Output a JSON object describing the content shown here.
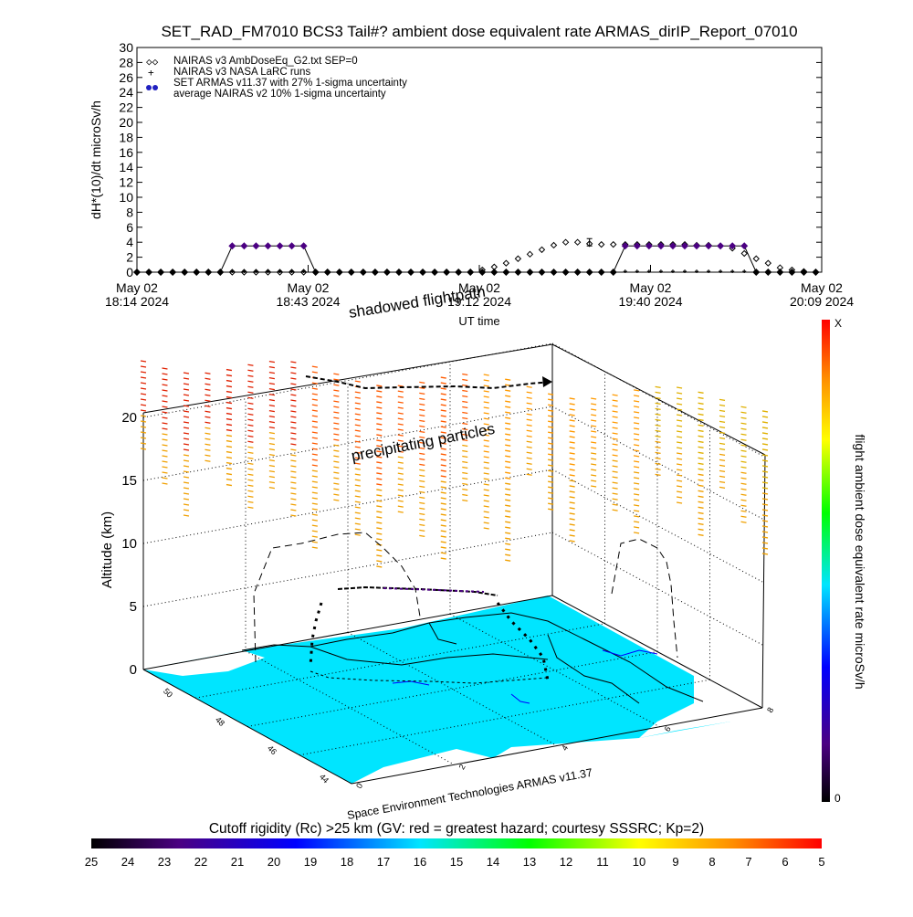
{
  "title": "SET_RAD_FM7010  BCS3 Tail#? ambient dose equivalent rate ARMAS_dirIP_Report_07010",
  "chart_data": [
    {
      "type": "scatter",
      "ylabel": "dH*(10)/dt microSv/h",
      "xlabel": "UT time",
      "ylim": [
        0,
        30
      ],
      "yticks": [
        "0",
        "2",
        "4",
        "6",
        "8",
        "10",
        "12",
        "14",
        "16",
        "18",
        "20",
        "22",
        "24",
        "26",
        "28",
        "30"
      ],
      "xticks": [
        {
          "line1": "May 02",
          "line2": "18:14 2024"
        },
        {
          "line1": "May 02",
          "line2": "18:43 2024"
        },
        {
          "line1": "May 02",
          "line2": "19:12 2024"
        },
        {
          "line1": "May 02",
          "line2": "19:40 2024"
        },
        {
          "line1": "May 02",
          "line2": "20:09 2024"
        }
      ],
      "legend": [
        "NAIRAS v3 AmbDoseEq_G2.txt SEP=0",
        "NAIRAS v3 NASA LaRC runs",
        "SET ARMAS v11.37 with 27% 1-sigma uncertainty",
        "average NAIRAS v2 10% 1-sigma uncertainty"
      ],
      "legend_position": "top-left",
      "series": [
        {
          "name": "NAIRAS v3 AmbDoseEq_G2.txt SEP=0",
          "marker": "diamond",
          "x_min": [
            0,
            2,
            4,
            6,
            8,
            10,
            12,
            14,
            16,
            18,
            20,
            22,
            24,
            26,
            28,
            30,
            32,
            34,
            36,
            38,
            40,
            42,
            44,
            46,
            48,
            50,
            52,
            54,
            56,
            58,
            60,
            62,
            64,
            66,
            68,
            70,
            72,
            74,
            76,
            78,
            80,
            82,
            84,
            86,
            88,
            90,
            92,
            94,
            96,
            98,
            100,
            102,
            104,
            106,
            108,
            110,
            112,
            114
          ],
          "y": [
            0,
            0,
            0,
            0,
            0,
            0,
            0,
            0,
            0,
            0,
            0,
            0,
            0,
            0,
            0,
            0,
            0,
            0,
            0,
            0,
            0,
            0,
            0,
            0,
            0,
            0,
            0,
            0,
            0,
            0.3,
            0.7,
            1.2,
            1.8,
            2.4,
            3.0,
            3.6,
            4.0,
            4.0,
            3.8,
            3.7,
            3.7,
            3.7,
            3.7,
            3.7,
            3.7,
            3.7,
            3.7,
            3.6,
            3.6,
            3.5,
            3.2,
            2.5,
            1.8,
            1.2,
            0.6,
            0.3,
            0.1,
            0
          ]
        },
        {
          "name": "NAIRAS v3 NASA LaRC runs",
          "marker": "plus",
          "x_min": [
            0,
            2,
            4,
            6,
            8,
            10,
            12,
            14,
            16,
            18,
            20,
            22,
            24,
            26,
            28,
            30,
            32,
            34,
            36,
            38,
            40,
            42,
            44,
            46,
            48,
            50,
            52,
            54,
            56,
            58,
            60,
            62,
            64,
            66,
            68,
            70,
            72,
            74,
            76,
            78,
            80,
            82,
            84,
            86,
            88,
            90,
            92,
            94,
            96,
            98,
            100,
            102,
            104,
            106,
            108,
            110,
            112,
            114
          ],
          "y": [
            0,
            0,
            0,
            0,
            0,
            0,
            0,
            0,
            0,
            0,
            0,
            0,
            0,
            0,
            0,
            0,
            0,
            0,
            0,
            0,
            0,
            0,
            0,
            0,
            0,
            0,
            0,
            0,
            0,
            0,
            0,
            0,
            0,
            0,
            0,
            0,
            0,
            0,
            0,
            0,
            0,
            0,
            0,
            0,
            0,
            0,
            0,
            0,
            0,
            0,
            0,
            0,
            0,
            0,
            0,
            0,
            0,
            0
          ]
        },
        {
          "name": "SET ARMAS v11.37 with 27% 1-sigma uncertainty",
          "marker": "filled-circle",
          "color": "#4b0082",
          "x_min": [
            0,
            2,
            4,
            6,
            8,
            10,
            12,
            14,
            16,
            18,
            20,
            22,
            24,
            26,
            28,
            30,
            32,
            34,
            36,
            38,
            40,
            42,
            44,
            46,
            48,
            50,
            52,
            54,
            56,
            58,
            60,
            62,
            64,
            66,
            68,
            70,
            72,
            74,
            76,
            78,
            80,
            82,
            84,
            86,
            88,
            90,
            92,
            94,
            96,
            98,
            100,
            102,
            104,
            106,
            108,
            110,
            112,
            114
          ],
          "y": [
            0,
            0,
            0,
            0,
            0,
            0,
            0,
            0,
            3.5,
            3.5,
            3.5,
            3.5,
            3.5,
            3.5,
            3.5,
            0,
            0,
            0,
            0,
            0,
            0,
            0,
            0,
            0,
            0,
            0,
            0,
            0,
            0,
            0,
            0,
            0,
            0,
            0,
            0,
            0,
            0,
            0,
            0,
            0,
            0,
            3.5,
            3.5,
            3.5,
            3.5,
            3.5,
            3.5,
            3.5,
            3.5,
            3.5,
            3.5,
            3.5,
            0,
            0,
            0,
            0,
            0,
            0
          ]
        },
        {
          "name": "average NAIRAS v2 10% 1-sigma uncertainty",
          "marker": "errorbar",
          "x_min": 76,
          "y": 4.0
        }
      ]
    },
    {
      "type": "3d-scatter",
      "zlabel": "Altitude (km)",
      "zticks": [
        "0",
        "5",
        "10",
        "15",
        "20"
      ],
      "colorbar_label": "flight ambient dose equivalent rate microSv/h",
      "colorbar_top": "X",
      "colorbar_bottom": "0",
      "annotations": [
        "shadowed flightpath",
        "precipitating particles"
      ],
      "credit": "Space Environment Technologies ARMAS v11.37",
      "lat_ticks": [
        "50",
        "48",
        "46",
        "44"
      ],
      "lon_ticks": [
        "0",
        "2",
        "4",
        "6",
        "8"
      ],
      "map_color": "#00e5ff"
    },
    {
      "type": "colorbar",
      "title": "Cutoff rigidity (Rc) >25 km (GV: red = greatest hazard; courtesy SSSRC; Kp=2)",
      "ticks": [
        "25",
        "24",
        "23",
        "22",
        "21",
        "20",
        "19",
        "18",
        "17",
        "16",
        "15",
        "14",
        "13",
        "12",
        "11",
        "10",
        "9",
        "8",
        "7",
        "6",
        "5"
      ]
    }
  ]
}
